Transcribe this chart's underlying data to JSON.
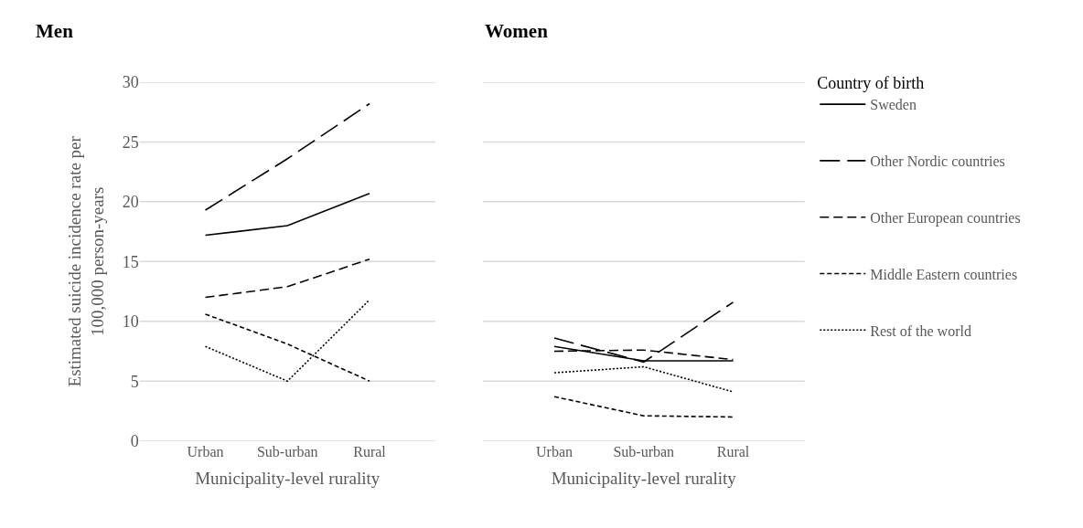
{
  "chart_data": [
    {
      "type": "line",
      "title": "Men",
      "xlabel": "Municipality-level rurality",
      "ylabel": "Estimated suicide incidence rate per 100,000 person-years",
      "categories": [
        "Urban",
        "Sub-urban",
        "Rural"
      ],
      "ylim": [
        0,
        30
      ],
      "yticks": [
        0,
        5,
        10,
        15,
        20,
        25,
        30
      ],
      "grid": "y",
      "legend": false,
      "marker": "none",
      "series": [
        {
          "color": "#000000",
          "line_style": "solid",
          "values": [
            17.2,
            18.0,
            20.7
          ]
        },
        {
          "color": "#000000",
          "line_style": "dashed",
          "values": [
            19.3,
            23.6,
            28.2
          ]
        },
        {
          "color": "#000000",
          "line_style": "dashed",
          "values": [
            12.0,
            12.9,
            15.2
          ]
        },
        {
          "color": "#000000",
          "line_style": "dashed",
          "values": [
            10.6,
            8.1,
            5.0
          ]
        },
        {
          "color": "#000000",
          "line_style": "dotted",
          "values": [
            7.9,
            5.0,
            11.8
          ]
        }
      ]
    },
    {
      "type": "line",
      "title": "Women",
      "xlabel": "Municipality-level rurality",
      "categories": [
        "Urban",
        "Sub-urban",
        "Rural"
      ],
      "ylim": [
        0,
        30
      ],
      "yticks": [
        0,
        5,
        10,
        15,
        20,
        25,
        30
      ],
      "grid": "y",
      "legend": "right",
      "legend_title": "Country of birth",
      "tick_labels": "x",
      "marker": "none",
      "series": [
        {
          "name": "Sweden",
          "color": "#000000",
          "line_style": "solid",
          "values": [
            7.9,
            6.7,
            6.7
          ]
        },
        {
          "name": "Other Nordic countries",
          "color": "#000000",
          "line_style": "dashed",
          "values": [
            8.6,
            6.6,
            11.6
          ]
        },
        {
          "name": "Other European countries",
          "color": "#000000",
          "line_style": "dashed",
          "values": [
            7.5,
            7.6,
            6.8
          ]
        },
        {
          "name": "Middle Eastern countries",
          "color": "#000000",
          "line_style": "dashed",
          "values": [
            3.7,
            2.1,
            2.0
          ]
        },
        {
          "name": "Rest of the world",
          "color": "#000000",
          "line_style": "dotted",
          "values": [
            5.7,
            6.2,
            4.1
          ]
        }
      ]
    }
  ]
}
